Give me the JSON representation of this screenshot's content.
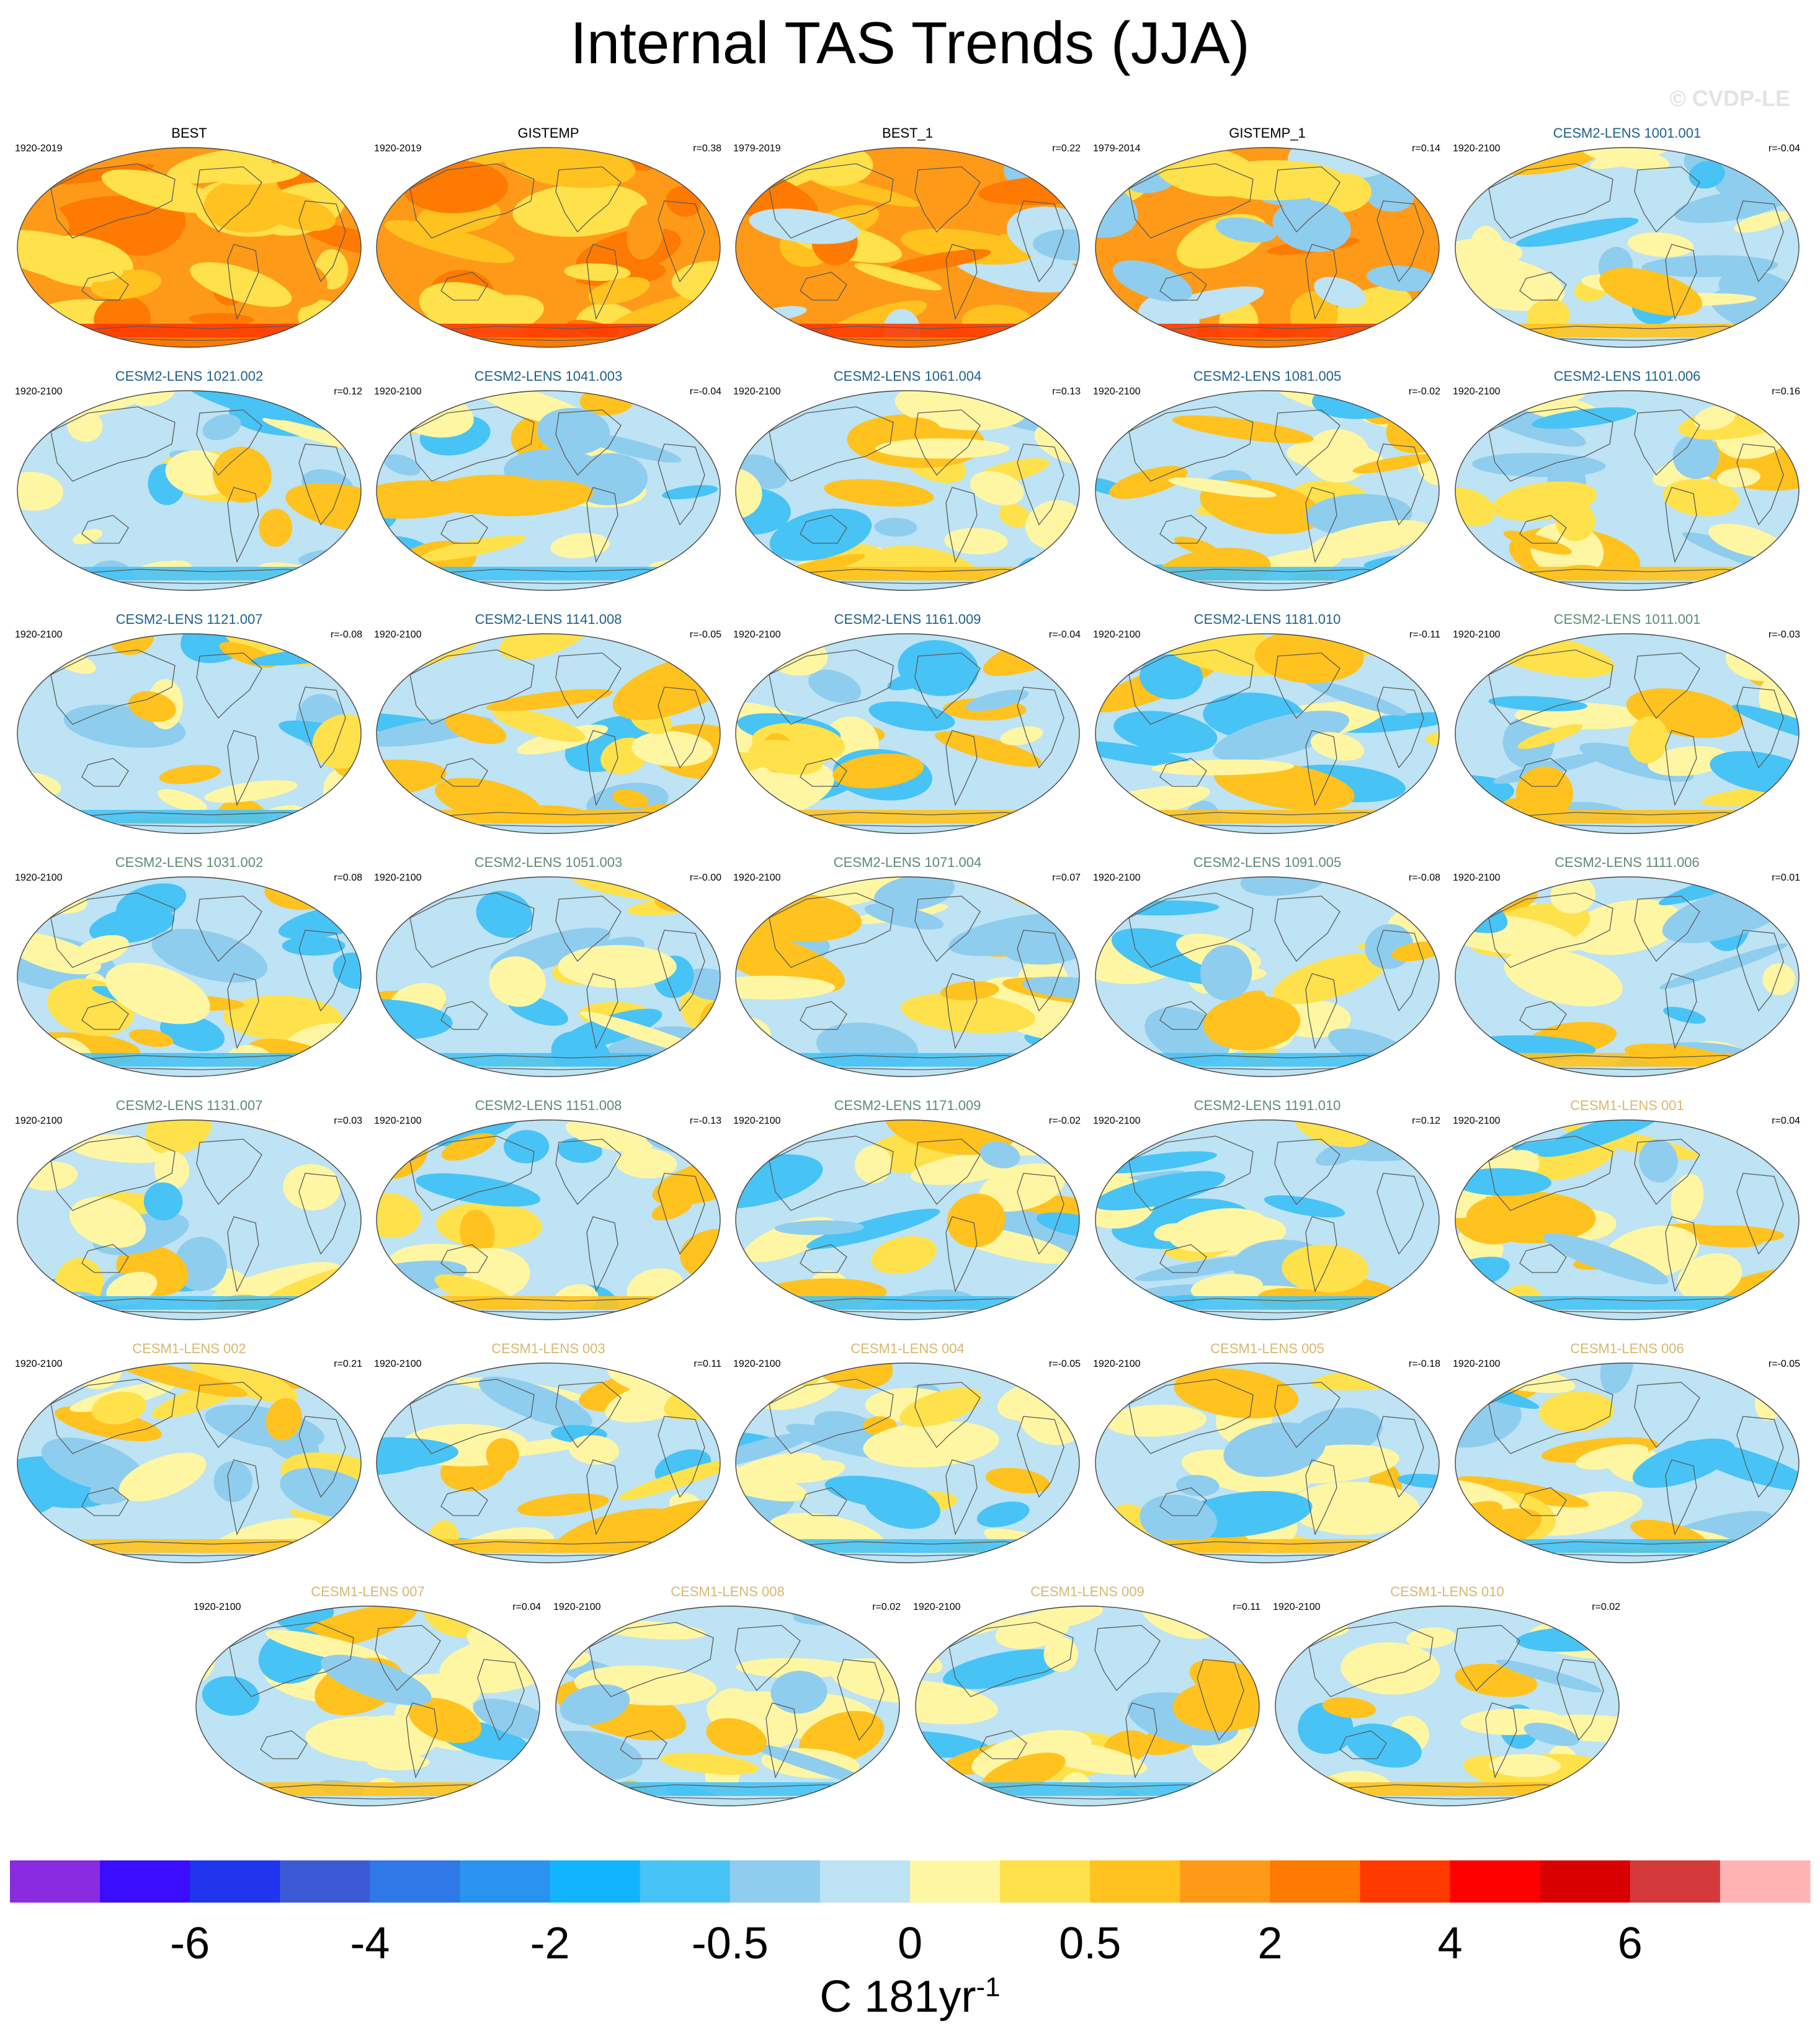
{
  "title": "Internal TAS Trends (JJA)",
  "watermark": "© CVDP-LE",
  "colors": {
    "obs_title": "#000000",
    "cesm2_a_title": "#1f5f8a",
    "cesm2_b_title": "#5d8a73",
    "cesm1_title": "#d9b870"
  },
  "chart_data": {
    "type": "heatmap",
    "title": "Internal TAS Trends (JJA)",
    "panels": [
      {
        "name": "BEST",
        "period": "1920-2019",
        "r": "",
        "group": "obs",
        "tone": "warm_strong"
      },
      {
        "name": "GISTEMP",
        "period": "1920-2019",
        "r": "r=0.38",
        "group": "obs",
        "tone": "warm_strong"
      },
      {
        "name": "BEST_1",
        "period": "1979-2019",
        "r": "r=0.22",
        "group": "obs",
        "tone": "warm_mixed"
      },
      {
        "name": "GISTEMP_1",
        "period": "1979-2014",
        "r": "r=0.14",
        "group": "obs",
        "tone": "warm_mixed"
      },
      {
        "name": "CESM2-LENS 1001.001",
        "period": "1920-2100",
        "r": "r=-0.04",
        "group": "cesm2_a",
        "tone": "mixed"
      },
      {
        "name": "CESM2-LENS 1021.002",
        "period": "1920-2100",
        "r": "r=0.12",
        "group": "cesm2_a",
        "tone": "mixed"
      },
      {
        "name": "CESM2-LENS 1041.003",
        "period": "1920-2100",
        "r": "r=-0.04",
        "group": "cesm2_a",
        "tone": "mixed"
      },
      {
        "name": "CESM2-LENS 1061.004",
        "period": "1920-2100",
        "r": "r=0.13",
        "group": "cesm2_a",
        "tone": "mixed"
      },
      {
        "name": "CESM2-LENS 1081.005",
        "period": "1920-2100",
        "r": "r=-0.02",
        "group": "cesm2_a",
        "tone": "mixed"
      },
      {
        "name": "CESM2-LENS 1101.006",
        "period": "1920-2100",
        "r": "r=0.16",
        "group": "cesm2_a",
        "tone": "mixed"
      },
      {
        "name": "CESM2-LENS 1121.007",
        "period": "1920-2100",
        "r": "r=-0.08",
        "group": "cesm2_a",
        "tone": "mixed"
      },
      {
        "name": "CESM2-LENS 1141.008",
        "period": "1920-2100",
        "r": "r=-0.05",
        "group": "cesm2_a",
        "tone": "mixed"
      },
      {
        "name": "CESM2-LENS 1161.009",
        "period": "1920-2100",
        "r": "r=-0.04",
        "group": "cesm2_a",
        "tone": "mixed"
      },
      {
        "name": "CESM2-LENS 1181.010",
        "period": "1920-2100",
        "r": "r=-0.11",
        "group": "cesm2_a",
        "tone": "mixed"
      },
      {
        "name": "CESM2-LENS 1011.001",
        "period": "1920-2100",
        "r": "r=-0.03",
        "group": "cesm2_b",
        "tone": "mixed"
      },
      {
        "name": "CESM2-LENS 1031.002",
        "period": "1920-2100",
        "r": "r=0.08",
        "group": "cesm2_b",
        "tone": "mixed"
      },
      {
        "name": "CESM2-LENS 1051.003",
        "period": "1920-2100",
        "r": "r=-0.00",
        "group": "cesm2_b",
        "tone": "mixed"
      },
      {
        "name": "CESM2-LENS 1071.004",
        "period": "1920-2100",
        "r": "r=0.07",
        "group": "cesm2_b",
        "tone": "mixed"
      },
      {
        "name": "CESM2-LENS 1091.005",
        "period": "1920-2100",
        "r": "r=-0.08",
        "group": "cesm2_b",
        "tone": "mixed"
      },
      {
        "name": "CESM2-LENS 1111.006",
        "period": "1920-2100",
        "r": "r=0.01",
        "group": "cesm2_b",
        "tone": "mixed"
      },
      {
        "name": "CESM2-LENS 1131.007",
        "period": "1920-2100",
        "r": "r=0.03",
        "group": "cesm2_b",
        "tone": "mixed"
      },
      {
        "name": "CESM2-LENS 1151.008",
        "period": "1920-2100",
        "r": "r=-0.13",
        "group": "cesm2_b",
        "tone": "mixed"
      },
      {
        "name": "CESM2-LENS 1171.009",
        "period": "1920-2100",
        "r": "r=-0.02",
        "group": "cesm2_b",
        "tone": "mixed"
      },
      {
        "name": "CESM2-LENS 1191.010",
        "period": "1920-2100",
        "r": "r=0.12",
        "group": "cesm2_b",
        "tone": "mixed"
      },
      {
        "name": "CESM1-LENS 001",
        "period": "1920-2100",
        "r": "r=0.04",
        "group": "cesm1",
        "tone": "mixed"
      },
      {
        "name": "CESM1-LENS 002",
        "period": "1920-2100",
        "r": "r=0.21",
        "group": "cesm1",
        "tone": "mixed"
      },
      {
        "name": "CESM1-LENS 003",
        "period": "1920-2100",
        "r": "r=0.11",
        "group": "cesm1",
        "tone": "mixed"
      },
      {
        "name": "CESM1-LENS 004",
        "period": "1920-2100",
        "r": "r=-0.05",
        "group": "cesm1",
        "tone": "mixed"
      },
      {
        "name": "CESM1-LENS 005",
        "period": "1920-2100",
        "r": "r=-0.18",
        "group": "cesm1",
        "tone": "mixed"
      },
      {
        "name": "CESM1-LENS 006",
        "period": "1920-2100",
        "r": "r=-0.05",
        "group": "cesm1",
        "tone": "mixed"
      },
      {
        "name": "CESM1-LENS 007",
        "period": "1920-2100",
        "r": "r=0.04",
        "group": "cesm1",
        "tone": "mixed"
      },
      {
        "name": "CESM1-LENS 008",
        "period": "1920-2100",
        "r": "r=0.02",
        "group": "cesm1",
        "tone": "mixed"
      },
      {
        "name": "CESM1-LENS 009",
        "period": "1920-2100",
        "r": "r=0.11",
        "group": "cesm1",
        "tone": "mixed"
      },
      {
        "name": "CESM1-LENS 010",
        "period": "1920-2100",
        "r": "r=0.02",
        "group": "cesm1",
        "tone": "mixed"
      }
    ],
    "colorbar": {
      "colors": [
        "#8a2be2",
        "#3a0dff",
        "#1f35ee",
        "#3c5ad6",
        "#2f78e8",
        "#2a93ef",
        "#12b4ff",
        "#48c3f5",
        "#8fcdee",
        "#bde3f4",
        "#fff6a3",
        "#ffe14b",
        "#ffc21f",
        "#ff9a18",
        "#ff7a00",
        "#ff3a00",
        "#ff0000",
        "#d80000",
        "#d43a3a",
        "#ffb3b3"
      ],
      "tick_labels": [
        "-6",
        "-4",
        "-2",
        "-0.5",
        "0",
        "0.5",
        "2",
        "4",
        "6"
      ],
      "tick_positions_index": [
        2,
        4,
        6,
        8,
        10,
        12,
        14,
        16,
        18
      ]
    },
    "units_label": "C 181yr",
    "units_sup": "-1"
  }
}
